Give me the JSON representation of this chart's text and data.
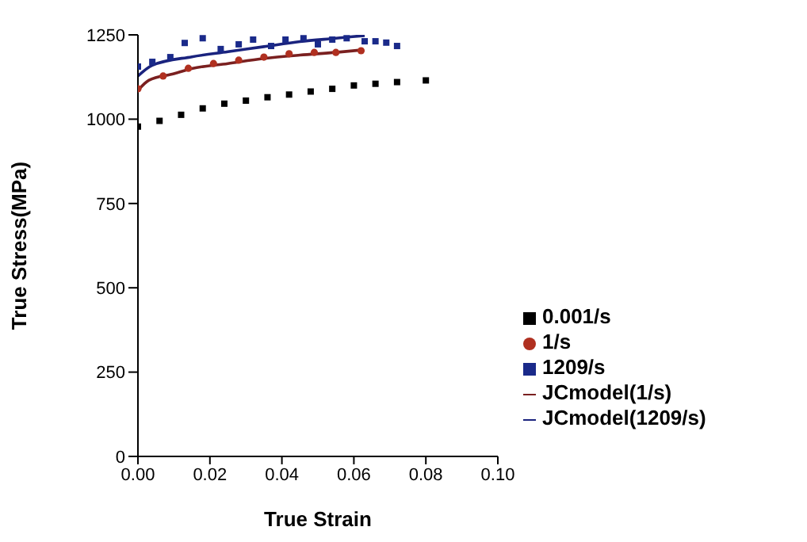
{
  "chart_data": {
    "type": "scatter",
    "xlabel": "True Strain",
    "ylabel": "True Stress(MPa)",
    "xlim": [
      0,
      0.1
    ],
    "xticks": [
      {
        "value": 0,
        "label": "0.00"
      },
      {
        "value": 0.02,
        "label": "0.02"
      },
      {
        "value": 0.04,
        "label": "0.04"
      },
      {
        "value": 0.06,
        "label": "0.06"
      },
      {
        "value": 0.08,
        "label": "0.08"
      },
      {
        "value": 0.1,
        "label": "0.10"
      }
    ],
    "ylim": [
      0,
      1250
    ],
    "yticks": [
      0,
      250,
      500,
      750,
      1000,
      1250
    ],
    "grid": false,
    "legend": "bottom right",
    "marker": "square",
    "series": [
      {
        "name": "0.001/s",
        "color": "#000000",
        "x": [
          0,
          0.006,
          0.012,
          0.018,
          0.024,
          0.03,
          0.036,
          0.042,
          0.048,
          0.054,
          0.06,
          0.066,
          0.072,
          0.08
        ],
        "values": [
          978,
          995,
          1013,
          1032,
          1046,
          1055,
          1065,
          1073,
          1082,
          1090,
          1100,
          1105,
          1110,
          1115
        ]
      },
      {
        "name": "1/s",
        "marker": "circle",
        "color": "#b03020",
        "x": [
          0,
          0.007,
          0.014,
          0.021,
          0.028,
          0.035,
          0.042,
          0.049,
          0.055,
          0.062
        ],
        "values": [
          1090,
          1128,
          1151,
          1165,
          1175,
          1184,
          1194,
          1198,
          1198,
          1203
        ]
      },
      {
        "name": "1209/s",
        "color": "#1a2a8a",
        "x": [
          0,
          0.004,
          0.009,
          0.013,
          0.018,
          0.023,
          0.028,
          0.032,
          0.037,
          0.041,
          0.046,
          0.05,
          0.054,
          0.058,
          0.063,
          0.066,
          0.069,
          0.072
        ],
        "values": [
          1156,
          1170,
          1184,
          1226,
          1240,
          1208,
          1222,
          1236,
          1217,
          1236,
          1240,
          1222,
          1236,
          1240,
          1231,
          1231,
          1227,
          1217
        ]
      },
      {
        "name": "JCmodel(1/s)",
        "type": "line",
        "marker": "none",
        "color": "#7a2020",
        "x": [
          0,
          0.003,
          0.01,
          0.015,
          0.025,
          0.035,
          0.045,
          0.055,
          0.062
        ],
        "values": [
          1085,
          1115,
          1135,
          1150,
          1165,
          1180,
          1190,
          1198,
          1205
        ]
      },
      {
        "name": "JCmodel(1209/s)",
        "type": "line",
        "marker": "none",
        "color": "#1a237e",
        "x": [
          0,
          0.004,
          0.015,
          0.025,
          0.035,
          0.045,
          0.055,
          0.063
        ],
        "values": [
          1128,
          1160,
          1185,
          1200,
          1215,
          1230,
          1240,
          1248
        ]
      }
    ]
  }
}
